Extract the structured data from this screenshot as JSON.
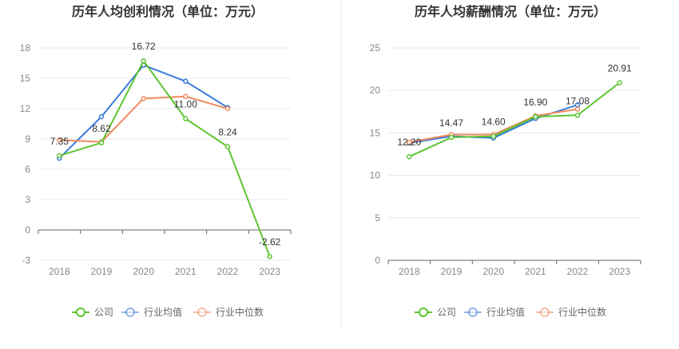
{
  "charts": [
    {
      "title": "历年人均创利情况（单位：万元）",
      "chart_data": {
        "type": "line",
        "title": "历年人均创利情况（单位：万元）",
        "categories": [
          "2018",
          "2019",
          "2020",
          "2021",
          "2022",
          "2023"
        ],
        "ylim": [
          -3,
          18
        ],
        "yticks": [
          -3,
          0,
          3,
          6,
          9,
          12,
          15,
          18
        ],
        "series": [
          {
            "name": "公司",
            "color": "#5cc531",
            "values": [
              7.35,
              8.62,
              16.72,
              11.0,
              8.24,
              -2.62
            ],
            "labels": [
              "7.35",
              "8.62",
              "16.72",
              "11.00",
              "8.24",
              "-2.62"
            ]
          },
          {
            "name": "行业均值",
            "color": "#3c7bd8",
            "values": [
              7.1,
              11.2,
              16.3,
              14.7,
              12.1,
              null
            ]
          },
          {
            "name": "行业中位数",
            "color": "#ee8b5e",
            "values": [
              8.9,
              8.7,
              13.0,
              13.2,
              12.0,
              null
            ]
          }
        ],
        "legend": [
          "公司",
          "行业均值",
          "行业中位数"
        ],
        "legend_position": "bottom-center"
      }
    },
    {
      "title": "历年人均薪酬情况（单位：万元）",
      "chart_data": {
        "type": "line",
        "title": "历年人均薪酬情况（单位：万元）",
        "categories": [
          "2018",
          "2019",
          "2020",
          "2021",
          "2022",
          "2023"
        ],
        "ylim": [
          0,
          25
        ],
        "yticks": [
          0,
          5,
          10,
          15,
          20,
          25
        ],
        "series": [
          {
            "name": "公司",
            "color": "#5cc531",
            "values": [
              12.2,
              14.47,
              14.6,
              16.9,
              17.08,
              20.91
            ],
            "labels": [
              "12.20",
              "14.47",
              "14.60",
              "16.90",
              "17.08",
              "20.91"
            ]
          },
          {
            "name": "行业均值",
            "color": "#3c7bd8",
            "values": [
              13.8,
              14.6,
              14.4,
              16.7,
              18.3,
              null
            ]
          },
          {
            "name": "行业中位数",
            "color": "#ee8b5e",
            "values": [
              13.9,
              14.8,
              14.8,
              17.0,
              17.8,
              null
            ]
          }
        ],
        "legend": [
          "公司",
          "行业均值",
          "行业中位数"
        ],
        "legend_position": "bottom-center"
      }
    }
  ]
}
